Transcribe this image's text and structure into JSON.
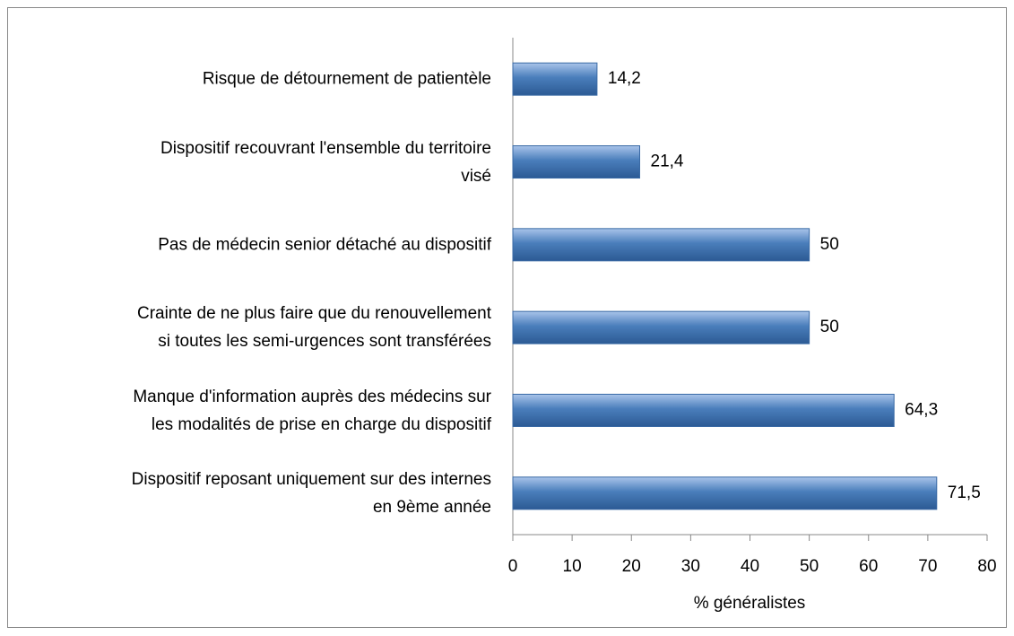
{
  "chart_data": {
    "type": "bar",
    "orientation": "horizontal",
    "categories": [
      "Risque de détournement de patientèle",
      "Dispositif recouvrant l'ensemble du territoire\nvisé",
      "Pas de médecin senior détaché au dispositif",
      "Crainte de ne plus faire que du renouvellement\nsi toutes les semi-urgences sont transférées",
      "Manque d'information auprès des médecins sur\nles modalités de prise en charge du dispositif",
      "Dispositif reposant uniquement sur des internes\nen 9ème année"
    ],
    "values": [
      14.2,
      21.4,
      50,
      50,
      64.3,
      71.5
    ],
    "value_labels": [
      "14,2",
      "21,4",
      "50",
      "50",
      "64,3",
      "71,5"
    ],
    "color": "#4a7ebb",
    "xlabel": "% généralistes",
    "xlim": [
      0,
      80
    ],
    "xticks": [
      0,
      10,
      20,
      30,
      40,
      50,
      60,
      70,
      80
    ],
    "grid": false
  }
}
